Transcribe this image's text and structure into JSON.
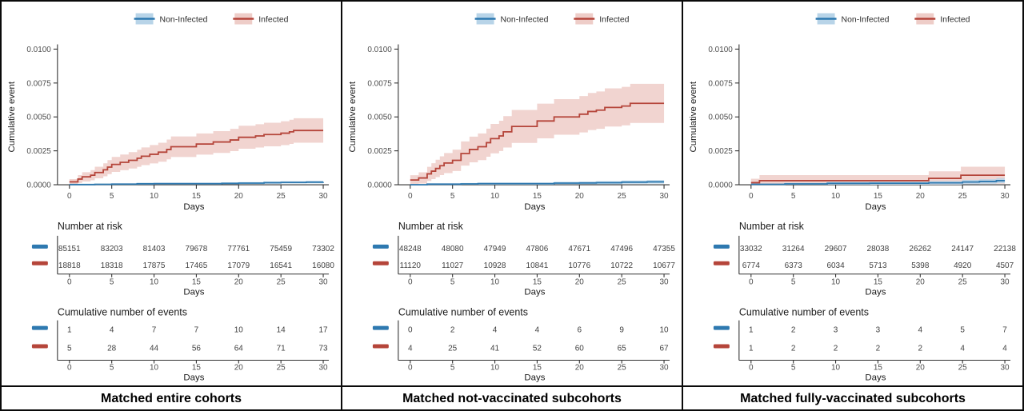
{
  "common": {
    "ylabel": "Cumulative event",
    "xlabel": "Days",
    "legend": [
      "Non-Infected",
      "Infected"
    ],
    "risk_header": "Number at risk",
    "events_header": "Cumulative number of events",
    "y_tick_labels": [
      "0.0000",
      "0.0025",
      "0.0050",
      "0.0075",
      "0.0100"
    ],
    "x_ticks": [
      0,
      5,
      10,
      15,
      20,
      25,
      30
    ],
    "colors": {
      "non_infected_line": "#2e79b0",
      "non_infected_band": "#b8d4e8",
      "infected_line": "#b5453a",
      "infected_band": "#eecdc8",
      "axis": "#333333",
      "tick_text": "#4d4d4d",
      "table_text": "#3f3f3f",
      "header_text": "#1a1a1a"
    }
  },
  "chart_data": [
    {
      "type": "line",
      "subtype": "cumulative-incidence-step-curves-with-ci-bands",
      "title": "Matched entire cohorts",
      "xlabel": "Days",
      "ylabel": "Cumulative event",
      "xlim": [
        0,
        30
      ],
      "ylim": [
        0,
        0.01
      ],
      "x_ticks": [
        0,
        5,
        10,
        15,
        20,
        25,
        30
      ],
      "y_tick_labels": [
        "0.0000",
        "0.0025",
        "0.0050",
        "0.0075",
        "0.0100"
      ],
      "legend_position": "top",
      "series": [
        {
          "name": "Non-Infected",
          "n_at_day0": 85151,
          "step_points": [
            [
              0,
              1e-05
            ],
            [
              3,
              3e-05
            ],
            [
              5,
              5e-05
            ],
            [
              8,
              7e-05
            ],
            [
              10,
              8e-05
            ],
            [
              15,
              8e-05
            ],
            [
              18,
              0.0001
            ],
            [
              20,
              0.00012
            ],
            [
              23,
              0.00015
            ],
            [
              25,
              0.00017
            ],
            [
              28,
              0.00019
            ],
            [
              30,
              0.0002
            ]
          ]
        },
        {
          "name": "Infected",
          "n_at_day0": 18818,
          "step_points": [
            [
              0,
              0.00021
            ],
            [
              1,
              0.00042
            ],
            [
              1.5,
              0.00058
            ],
            [
              2.5,
              0.0007
            ],
            [
              3,
              0.0009
            ],
            [
              4,
              0.0011
            ],
            [
              4.5,
              0.0013
            ],
            [
              5,
              0.0015
            ],
            [
              6,
              0.00165
            ],
            [
              7,
              0.0018
            ],
            [
              8,
              0.00195
            ],
            [
              8.5,
              0.0021
            ],
            [
              9.5,
              0.00225
            ],
            [
              10.5,
              0.0024
            ],
            [
              11.5,
              0.0026
            ],
            [
              12,
              0.0028
            ],
            [
              15,
              0.003
            ],
            [
              17,
              0.00315
            ],
            [
              19,
              0.0033
            ],
            [
              20,
              0.0035
            ],
            [
              22,
              0.0036
            ],
            [
              23,
              0.0037
            ],
            [
              25,
              0.0038
            ],
            [
              26,
              0.0039
            ],
            [
              26.5,
              0.004
            ],
            [
              30,
              0.004
            ]
          ]
        }
      ],
      "number_at_risk": {
        "header": "Number at risk",
        "rows": [
          {
            "name": "Non-Infected",
            "values": [
              "85151",
              "83203",
              "81403",
              "79678",
              "77761",
              "75459",
              "73302"
            ]
          },
          {
            "name": "Infected",
            "values": [
              "18818",
              "18318",
              "17875",
              "17465",
              "17079",
              "16541",
              "16080"
            ]
          }
        ]
      },
      "cumulative_events": {
        "header": "Cumulative number of events",
        "rows": [
          {
            "name": "Non-Infected",
            "values": [
              "1",
              "4",
              "7",
              "7",
              "10",
              "14",
              "17"
            ]
          },
          {
            "name": "Infected",
            "values": [
              "5",
              "28",
              "44",
              "56",
              "64",
              "71",
              "73"
            ]
          }
        ]
      }
    },
    {
      "type": "line",
      "subtype": "cumulative-incidence-step-curves-with-ci-bands",
      "title": "Matched not-vaccinated subcohorts",
      "xlabel": "Days",
      "ylabel": "Cumulative event",
      "xlim": [
        0,
        30
      ],
      "ylim": [
        0,
        0.01
      ],
      "x_ticks": [
        0,
        5,
        10,
        15,
        20,
        25,
        30
      ],
      "y_tick_labels": [
        "0.0000",
        "0.0025",
        "0.0050",
        "0.0075",
        "0.0100"
      ],
      "legend_position": "top",
      "series": [
        {
          "name": "Non-Infected",
          "n_at_day0": 48248,
          "step_points": [
            [
              0,
              0.0
            ],
            [
              2,
              4e-05
            ],
            [
              6,
              6e-05
            ],
            [
              8,
              8e-05
            ],
            [
              15,
              8e-05
            ],
            [
              17,
              0.00012
            ],
            [
              20,
              0.00013
            ],
            [
              22,
              0.00015
            ],
            [
              25,
              0.00019
            ],
            [
              28,
              0.00021
            ],
            [
              30,
              0.00021
            ]
          ]
        },
        {
          "name": "Infected",
          "n_at_day0": 11120,
          "step_points": [
            [
              0,
              0.00035
            ],
            [
              1,
              0.0005
            ],
            [
              2,
              0.0008
            ],
            [
              2.5,
              0.001
            ],
            [
              3,
              0.0012
            ],
            [
              3.5,
              0.0014
            ],
            [
              4,
              0.0016
            ],
            [
              5,
              0.0018
            ],
            [
              6,
              0.0023
            ],
            [
              7,
              0.0026
            ],
            [
              8,
              0.0028
            ],
            [
              9,
              0.0031
            ],
            [
              9.5,
              0.0034
            ],
            [
              10.5,
              0.0036
            ],
            [
              11,
              0.0039
            ],
            [
              12,
              0.0043
            ],
            [
              15,
              0.0047
            ],
            [
              17,
              0.005
            ],
            [
              20,
              0.0052
            ],
            [
              21,
              0.0054
            ],
            [
              22,
              0.0055
            ],
            [
              23,
              0.0057
            ],
            [
              25,
              0.0058
            ],
            [
              26,
              0.006
            ],
            [
              30,
              0.006
            ]
          ]
        }
      ],
      "number_at_risk": {
        "header": "Number at risk",
        "rows": [
          {
            "name": "Non-Infected",
            "values": [
              "48248",
              "48080",
              "47949",
              "47806",
              "47671",
              "47496",
              "47355"
            ]
          },
          {
            "name": "Infected",
            "values": [
              "11120",
              "11027",
              "10928",
              "10841",
              "10776",
              "10722",
              "10677"
            ]
          }
        ]
      },
      "cumulative_events": {
        "header": "Cumulative number of events",
        "rows": [
          {
            "name": "Non-Infected",
            "values": [
              "0",
              "2",
              "4",
              "4",
              "6",
              "9",
              "10"
            ]
          },
          {
            "name": "Infected",
            "values": [
              "4",
              "25",
              "41",
              "52",
              "60",
              "65",
              "67"
            ]
          }
        ]
      }
    },
    {
      "type": "line",
      "subtype": "cumulative-incidence-step-curves-with-ci-bands",
      "title": "Matched fully-vaccinated subcohorts",
      "xlabel": "Days",
      "ylabel": "Cumulative event",
      "xlim": [
        0,
        30
      ],
      "ylim": [
        0,
        0.01
      ],
      "x_ticks": [
        0,
        5,
        10,
        15,
        20,
        25,
        30
      ],
      "y_tick_labels": [
        "0.0000",
        "0.0025",
        "0.0050",
        "0.0075",
        "0.0100"
      ],
      "legend_position": "top",
      "series": [
        {
          "name": "Non-Infected",
          "n_at_day0": 33032,
          "step_points": [
            [
              0,
              3e-05
            ],
            [
              4,
              6e-05
            ],
            [
              9,
              0.0001
            ],
            [
              14,
              0.00011
            ],
            [
              21,
              0.00014
            ],
            [
              25,
              0.0002
            ],
            [
              27,
              0.00024
            ],
            [
              29,
              0.0003
            ],
            [
              30,
              0.0003
            ]
          ]
        },
        {
          "name": "Infected",
          "n_at_day0": 6774,
          "step_points": [
            [
              0,
              0.00015
            ],
            [
              1,
              0.0003
            ],
            [
              21,
              0.00047
            ],
            [
              24.8,
              0.0007
            ],
            [
              30,
              0.0007
            ]
          ]
        }
      ],
      "number_at_risk": {
        "header": "Number at risk",
        "rows": [
          {
            "name": "Non-Infected",
            "values": [
              "33032",
              "31264",
              "29607",
              "28038",
              "26262",
              "24147",
              "22138"
            ]
          },
          {
            "name": "Infected",
            "values": [
              "6774",
              "6373",
              "6034",
              "5713",
              "5398",
              "4920",
              "4507"
            ]
          }
        ]
      },
      "cumulative_events": {
        "header": "Cumulative number of events",
        "rows": [
          {
            "name": "Non-Infected",
            "values": [
              "1",
              "2",
              "3",
              "3",
              "4",
              "5",
              "7"
            ]
          },
          {
            "name": "Infected",
            "values": [
              "1",
              "2",
              "2",
              "2",
              "2",
              "4",
              "4"
            ]
          }
        ]
      }
    }
  ]
}
